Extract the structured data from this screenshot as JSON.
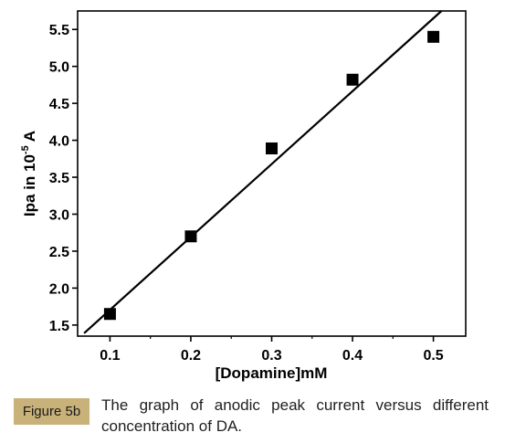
{
  "chart_data": {
    "type": "scatter",
    "title": "",
    "xlabel": "[Dopamine]mM",
    "ylabel_parts": {
      "prefix": "Ipa in 10",
      "superscript": "-5",
      "suffix": " A"
    },
    "xlim": [
      0.06,
      0.54
    ],
    "ylim": [
      1.35,
      5.75
    ],
    "x_ticks": [
      0.1,
      0.2,
      0.3,
      0.4,
      0.5
    ],
    "x_tick_labels": [
      "0.1",
      "0.2",
      "0.3",
      "0.4",
      "0.5"
    ],
    "y_ticks": [
      1.5,
      2.0,
      2.5,
      3.0,
      3.5,
      4.0,
      4.5,
      5.0,
      5.5
    ],
    "y_tick_labels": [
      "1.5",
      "2.0",
      "2.5",
      "3.0",
      "3.5",
      "4.0",
      "4.5",
      "5.0",
      "5.5"
    ],
    "series": [
      {
        "marker": "square",
        "color": "#000000",
        "x": [
          0.1,
          0.2,
          0.3,
          0.4,
          0.5
        ],
        "y": [
          1.65,
          2.7,
          3.89,
          4.82,
          5.4
        ]
      }
    ],
    "fit_line": {
      "x": [
        0.068,
        0.51
      ],
      "y": [
        1.39,
        5.75
      ],
      "color": "#000000"
    },
    "grid": false,
    "legend": "none"
  },
  "caption": {
    "label": "Figure 5b",
    "text": "The graph of anodic peak current versus different concentration of DA."
  }
}
